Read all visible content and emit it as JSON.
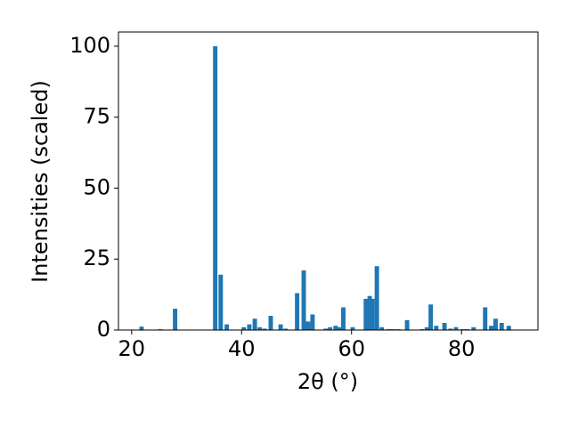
{
  "chart_data": {
    "type": "bar",
    "xlabel": "2θ (°)",
    "ylabel": "Intensities (scaled)",
    "x": [
      21.8,
      25.2,
      27.9,
      35.2,
      36.2,
      37.3,
      40.4,
      41.4,
      42.4,
      43.3,
      44.2,
      45.3,
      47.1,
      48.0,
      50.1,
      51.3,
      52.1,
      52.9,
      55.3,
      56.1,
      57.1,
      57.7,
      58.5,
      60.2,
      62.6,
      63.3,
      63.8,
      64.6,
      65.5,
      66.7,
      67.5,
      68.5,
      70.1,
      72.8,
      73.7,
      74.4,
      75.4,
      76.9,
      78.0,
      79.0,
      80.2,
      81.0,
      82.2,
      84.3,
      85.4,
      86.2,
      87.3,
      88.6
    ],
    "values": [
      1.2,
      0.3,
      7.5,
      100,
      19.5,
      2,
      1,
      2,
      4,
      1,
      0.5,
      5,
      2,
      0.5,
      13,
      21,
      3,
      5.5,
      0.5,
      1,
      1.5,
      1,
      8,
      1,
      11,
      12,
      11,
      22.5,
      1,
      0.3,
      0.3,
      0.3,
      3.5,
      0.3,
      1,
      9,
      1.5,
      2.5,
      0.5,
      1,
      0.3,
      0.3,
      1,
      8,
      1.5,
      4,
      2.5,
      1.5
    ],
    "color": "#1f77b4",
    "xlim": [
      17.6,
      93.9
    ],
    "xticks": [
      20,
      40,
      60,
      80
    ],
    "ylim": [
      0,
      105
    ],
    "yticks": [
      0,
      25,
      50,
      75,
      100
    ],
    "grid": false
  }
}
